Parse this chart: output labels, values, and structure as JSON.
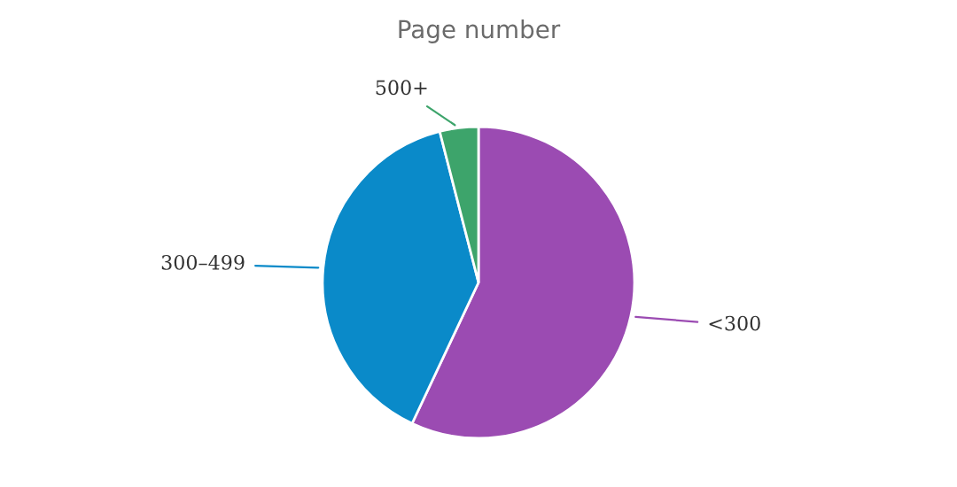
{
  "chart_data": {
    "type": "pie",
    "title": "Page number",
    "categories": [
      "<300",
      "300–499",
      "500+"
    ],
    "values": [
      57,
      39,
      4
    ],
    "colors": [
      "#9b4bb2",
      "#0a8ac9",
      "#3da46b"
    ]
  }
}
